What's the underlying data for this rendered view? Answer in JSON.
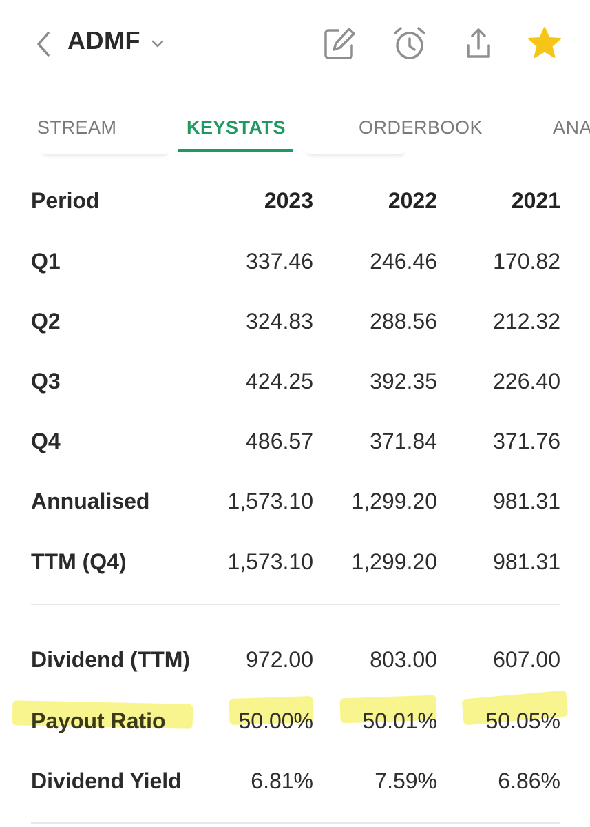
{
  "header": {
    "ticker": "ADMF",
    "icons": [
      "back-chevron-icon",
      "dropdown-chevron-icon",
      "edit-icon",
      "alarm-clock-icon",
      "share-icon",
      "star-icon"
    ],
    "star_color": "#f5c518"
  },
  "tabs": [
    {
      "label": "STREAM",
      "active": false
    },
    {
      "label": "KEYSTATS",
      "active": true
    },
    {
      "label": "ORDERBOOK",
      "active": false
    },
    {
      "label": "ANA",
      "active": false
    }
  ],
  "accent_color": "#1f9a5e",
  "highlight_color": "#f8f37a",
  "table": {
    "header": {
      "label": "Period",
      "y1": "2023",
      "y2": "2022",
      "y3": "2021"
    },
    "eps_rows": [
      {
        "label": "Q1",
        "y1": "337.46",
        "y2": "246.46",
        "y3": "170.82"
      },
      {
        "label": "Q2",
        "y1": "324.83",
        "y2": "288.56",
        "y3": "212.32"
      },
      {
        "label": "Q3",
        "y1": "424.25",
        "y2": "392.35",
        "y3": "226.40"
      },
      {
        "label": "Q4",
        "y1": "486.57",
        "y2": "371.84",
        "y3": "371.76"
      },
      {
        "label": "Annualised",
        "y1": "1,573.10",
        "y2": "1,299.20",
        "y3": "981.31"
      },
      {
        "label": "TTM (Q4)",
        "y1": "1,573.10",
        "y2": "1,299.20",
        "y3": "981.31"
      }
    ],
    "dividend_rows": [
      {
        "label": "Dividend (TTM)",
        "y1": "972.00",
        "y2": "803.00",
        "y3": "607.00",
        "highlighted": false
      },
      {
        "label": "Payout Ratio",
        "y1": "50.00%",
        "y2": "50.01%",
        "y3": "50.05%",
        "highlighted": true
      },
      {
        "label": "Dividend Yield",
        "y1": "6.81%",
        "y2": "7.59%",
        "y3": "6.86%",
        "highlighted": false
      }
    ]
  }
}
